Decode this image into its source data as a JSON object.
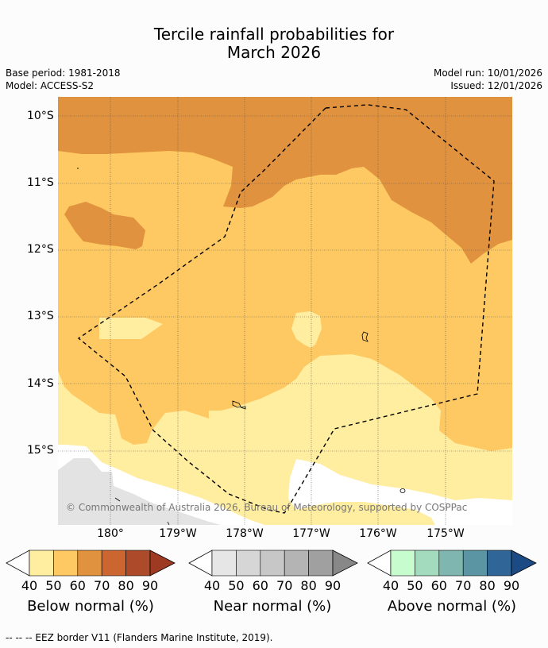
{
  "title_line1": "Tercile rainfall probabilities for",
  "title_line2": "March 2026",
  "meta": {
    "base_period": "Base period: 1981-2018",
    "model": "Model: ACCESS-S2",
    "model_run": "Model run: 10/01/2026",
    "issued": "Issued: 12/01/2026"
  },
  "map": {
    "lat_labels": [
      "10°S",
      "11°S",
      "12°S",
      "13°S",
      "14°S",
      "15°S"
    ],
    "lon_labels": [
      "180°",
      "179°W",
      "178°W",
      "177°W",
      "176°W",
      "175°W"
    ],
    "copyright": "© Commonwealth of Australia 2026, Bureau of Meteorology, supported by COSPPac"
  },
  "legends": [
    {
      "title": "Below normal (%)",
      "ticks": [
        "40",
        "50",
        "60",
        "70",
        "80",
        "90"
      ],
      "colors": [
        "#ffeda0",
        "#fec962",
        "#e0923e",
        "#cc6630",
        "#ad4a29",
        "#9e3a22"
      ]
    },
    {
      "title": "Near normal (%)",
      "ticks": [
        "40",
        "50",
        "60",
        "70",
        "80",
        "90"
      ],
      "colors": [
        "#e6e6e6",
        "#d6d6d6",
        "#c7c7c7",
        "#b4b4b4",
        "#a0a0a0",
        "#888888"
      ]
    },
    {
      "title": "Above normal (%)",
      "ticks": [
        "40",
        "50",
        "60",
        "70",
        "80",
        "90"
      ],
      "colors": [
        "#c7fcce",
        "#a3dbbe",
        "#7fb7b0",
        "#5b94a2",
        "#306598",
        "#1c4a84"
      ]
    }
  ],
  "footer": "-- -- -- EEZ border V11 (Flanders Marine Institute, 2019).",
  "colors": {
    "pale": "#ffeda0",
    "light": "#fec962",
    "mid": "#e0923e",
    "grey": "#e3e3e3",
    "white": "#ffffff"
  }
}
